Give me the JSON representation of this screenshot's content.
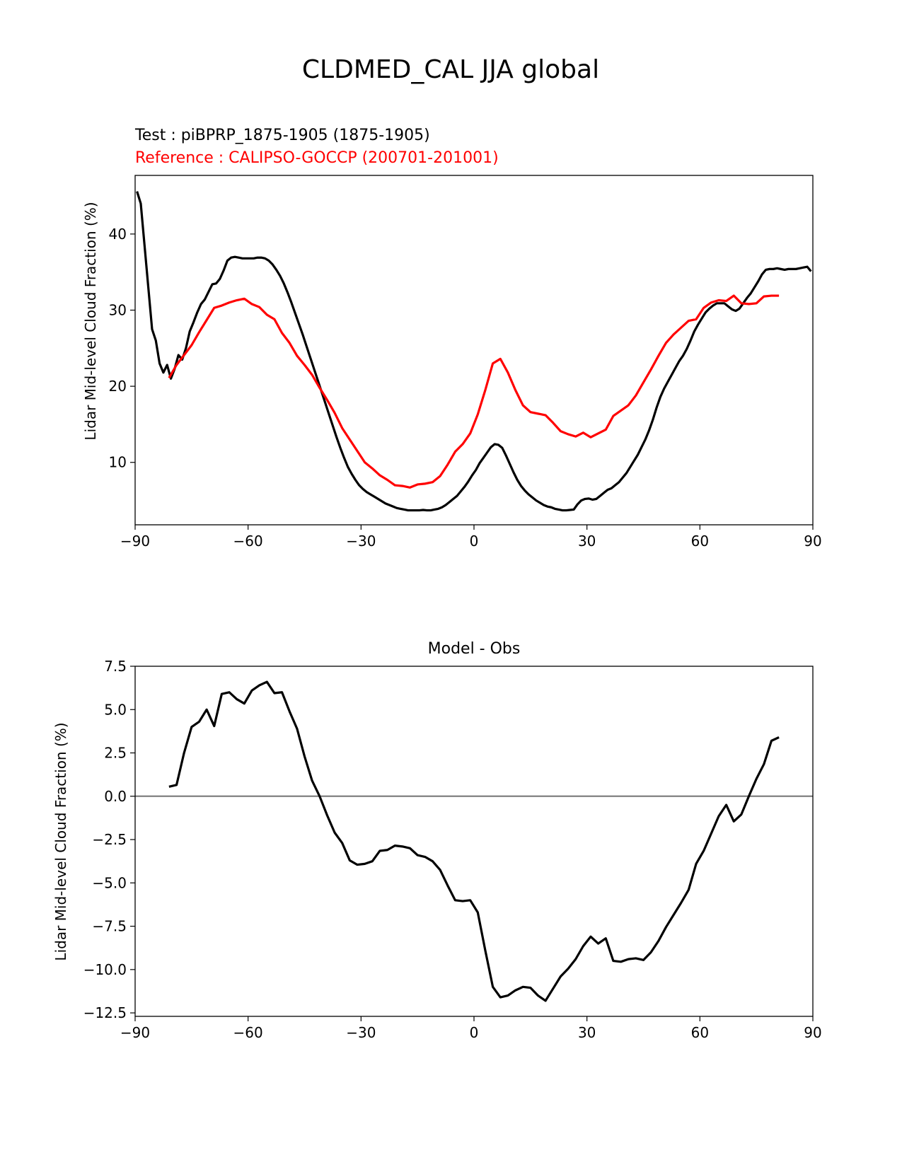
{
  "figure": {
    "title": "CLDMED_CAL JJA global"
  },
  "chart_data": [
    {
      "type": "line",
      "test_label": "Test : piBPRP_1875-1905 (1875-1905)",
      "reference_label": "Reference : CALIPSO-GOCCP (200701-201001)",
      "xlabel": "",
      "ylabel": "Lidar Mid-level Cloud Fraction (%)",
      "xlim": [
        -90,
        90
      ],
      "ylim": [
        1.8,
        47.7
      ],
      "xticks": [
        -90,
        -60,
        -30,
        0,
        30,
        60,
        90
      ],
      "xtick_labels": [
        "−90",
        "−60",
        "−30",
        "0",
        "30",
        "60",
        "90"
      ],
      "yticks": [
        10,
        20,
        30,
        40
      ],
      "ytick_labels": [
        "10",
        "20",
        "30",
        "40"
      ],
      "grid": false,
      "series": [
        {
          "color": "#000000",
          "x": [
            -89.5,
            -88.5,
            -87.5,
            -86.5,
            -85.5,
            -84.5,
            -83.5,
            -82.5,
            -81.5,
            -80.5,
            -79.5,
            -78.5,
            -77.5,
            -76.5,
            -75.5,
            -74.5,
            -73.5,
            -72.5,
            -71.5,
            -70.5,
            -69.5,
            -68.5,
            -67.5,
            -66.5,
            -65.5,
            -64.5,
            -63.5,
            -62.5,
            -61.5,
            -60.5,
            -59.5,
            -58.5,
            -57.5,
            -56.5,
            -55.5,
            -54.5,
            -53.5,
            -52.5,
            -51.5,
            -50.5,
            -49.5,
            -48.5,
            -47.5,
            -46.5,
            -45.5,
            -44.5,
            -43.5,
            -42.5,
            -41.5,
            -40.5,
            -39.5,
            -38.5,
            -37.5,
            -36.5,
            -35.5,
            -34.5,
            -33.5,
            -32.5,
            -31.5,
            -30.5,
            -29.5,
            -28.5,
            -27.5,
            -26.5,
            -25.5,
            -24.5,
            -23.5,
            -22.5,
            -21.5,
            -20.5,
            -19.5,
            -18.5,
            -17.5,
            -16.5,
            -15.5,
            -14.5,
            -13.5,
            -12.5,
            -11.5,
            -10.5,
            -9.5,
            -8.5,
            -7.5,
            -6.5,
            -5.5,
            -4.5,
            -3.5,
            -2.5,
            -1.5,
            -0.5,
            0.5,
            1.5,
            2.5,
            3.5,
            4.5,
            5.5,
            6.5,
            7.5,
            8.5,
            9.5,
            10.5,
            11.5,
            12.5,
            13.5,
            14.5,
            15.5,
            16.5,
            17.5,
            18.5,
            19.5,
            20.5,
            21.5,
            22.5,
            23.5,
            24.5,
            25.5,
            26.5,
            27.5,
            28.5,
            29.5,
            30.5,
            31.5,
            32.5,
            33.5,
            34.5,
            35.5,
            36.5,
            37.5,
            38.5,
            39.5,
            40.5,
            41.5,
            42.5,
            43.5,
            44.5,
            45.5,
            46.5,
            47.5,
            48.5,
            49.5,
            50.5,
            51.5,
            52.5,
            53.5,
            54.5,
            55.5,
            56.5,
            57.5,
            58.5,
            59.5,
            60.5,
            61.5,
            62.5,
            63.5,
            64.5,
            65.5,
            66.5,
            67.5,
            68.5,
            69.5,
            70.5,
            71.5,
            72.5,
            73.5,
            74.5,
            75.5,
            76.5,
            77.5,
            78.5,
            79.5,
            80.5,
            81.5,
            82.5,
            83.5,
            84.5,
            85.5,
            86.5,
            87.5,
            88.5,
            89.5
          ],
          "y": [
            45.6,
            44.0,
            38.5,
            33.0,
            27.5,
            26.0,
            23.0,
            21.8,
            22.8,
            21.0,
            22.3,
            24.1,
            23.5,
            25.0,
            27.2,
            28.4,
            29.7,
            30.8,
            31.4,
            32.4,
            33.4,
            33.5,
            34.1,
            35.2,
            36.5,
            36.9,
            37.0,
            36.9,
            36.8,
            36.8,
            36.8,
            36.8,
            36.9,
            36.9,
            36.8,
            36.5,
            36.0,
            35.3,
            34.5,
            33.5,
            32.3,
            31.0,
            29.6,
            28.2,
            26.8,
            25.3,
            23.8,
            22.3,
            20.8,
            19.3,
            17.8,
            16.3,
            14.8,
            13.3,
            11.9,
            10.6,
            9.4,
            8.5,
            7.7,
            7.0,
            6.5,
            6.1,
            5.8,
            5.5,
            5.2,
            4.9,
            4.6,
            4.4,
            4.2,
            4.0,
            3.9,
            3.8,
            3.7,
            3.7,
            3.7,
            3.7,
            3.75,
            3.7,
            3.7,
            3.8,
            3.9,
            4.1,
            4.4,
            4.8,
            5.2,
            5.6,
            6.2,
            6.8,
            7.5,
            8.3,
            9.0,
            9.9,
            10.6,
            11.3,
            12.0,
            12.4,
            12.3,
            11.9,
            10.9,
            9.8,
            8.7,
            7.7,
            6.9,
            6.3,
            5.8,
            5.4,
            5.0,
            4.7,
            4.4,
            4.2,
            4.1,
            3.9,
            3.8,
            3.7,
            3.7,
            3.75,
            3.8,
            4.5,
            5.0,
            5.2,
            5.25,
            5.1,
            5.2,
            5.6,
            6.0,
            6.4,
            6.6,
            7.0,
            7.4,
            8.0,
            8.6,
            9.4,
            10.2,
            11.0,
            12.0,
            13.0,
            14.2,
            15.6,
            17.2,
            18.6,
            19.7,
            20.6,
            21.5,
            22.4,
            23.3,
            24.0,
            24.9,
            26.0,
            27.2,
            28.1,
            28.9,
            29.7,
            30.2,
            30.6,
            30.9,
            30.9,
            30.9,
            30.5,
            30.1,
            29.9,
            30.2,
            30.9,
            31.6,
            32.2,
            33.0,
            33.8,
            34.7,
            35.3,
            35.4,
            35.4,
            35.5,
            35.4,
            35.3,
            35.4,
            35.4,
            35.4,
            35.5,
            35.6,
            35.7,
            35.1
          ]
        },
        {
          "color": "#ff0000",
          "x": [
            -81,
            -79,
            -77,
            -75,
            -73,
            -71,
            -69,
            -67,
            -65,
            -63,
            -61,
            -59,
            -57,
            -55,
            -53,
            -51,
            -49,
            -47,
            -45,
            -43,
            -41,
            -39,
            -37,
            -35,
            -33,
            -31,
            -29,
            -27,
            -25,
            -23,
            -21,
            -19,
            -17,
            -15,
            -13,
            -11,
            -9,
            -7,
            -5,
            -3,
            -1,
            1,
            3,
            5,
            7,
            9,
            11,
            13,
            15,
            17,
            19,
            21,
            23,
            25,
            27,
            29,
            31,
            33,
            35,
            37,
            39,
            41,
            43,
            45,
            47,
            49,
            51,
            53,
            55,
            57,
            59,
            61,
            63,
            65,
            67,
            69,
            71,
            73,
            75,
            77,
            79,
            81
          ],
          "y": [
            21.1,
            22.8,
            24.1,
            25.4,
            27.1,
            28.7,
            30.3,
            30.6,
            31.0,
            31.3,
            31.5,
            30.8,
            30.4,
            29.4,
            28.8,
            27.0,
            25.7,
            24.0,
            22.8,
            21.5,
            19.8,
            18.2,
            16.5,
            14.5,
            13.0,
            11.5,
            10.0,
            9.2,
            8.3,
            7.7,
            7.0,
            6.9,
            6.7,
            7.1,
            7.2,
            7.4,
            8.2,
            9.7,
            11.4,
            12.4,
            13.8,
            16.3,
            19.5,
            23.0,
            23.6,
            21.8,
            19.5,
            17.5,
            16.6,
            16.4,
            16.2,
            15.2,
            14.1,
            13.7,
            13.4,
            13.9,
            13.3,
            13.8,
            14.3,
            16.1,
            16.8,
            17.5,
            18.8,
            20.5,
            22.2,
            24.0,
            25.7,
            26.8,
            27.7,
            28.6,
            28.8,
            30.3,
            31.0,
            31.3,
            31.2,
            31.9,
            30.9,
            30.8,
            30.9,
            31.8,
            31.9,
            31.9
          ]
        }
      ]
    },
    {
      "type": "line",
      "title": "Model - Obs",
      "xlabel": "",
      "ylabel": "Lidar Mid-level Cloud Fraction (%)",
      "xlim": [
        -90,
        90
      ],
      "ylim": [
        -12.7,
        7.5
      ],
      "xticks": [
        -90,
        -60,
        -30,
        0,
        30,
        60,
        90
      ],
      "xtick_labels": [
        "−90",
        "−60",
        "−30",
        "0",
        "30",
        "60",
        "90"
      ],
      "yticks": [
        7.5,
        5.0,
        2.5,
        0.0,
        -2.5,
        -5.0,
        -7.5,
        -10.0,
        -12.5
      ],
      "ytick_labels": [
        "7.5",
        "5.0",
        "2.5",
        "0.0",
        "−2.5",
        "−5.0",
        "−7.5",
        "−10.0",
        "−12.5"
      ],
      "grid": false,
      "zero_line_color": "#808080",
      "series": [
        {
          "color": "#000000",
          "x": [
            -81,
            -79,
            -77,
            -75,
            -73,
            -71,
            -69,
            -67,
            -65,
            -63,
            -61,
            -59,
            -57,
            -55,
            -53,
            -51,
            -49,
            -47,
            -45,
            -43,
            -41,
            -39,
            -37,
            -35,
            -33,
            -31,
            -29,
            -27,
            -25,
            -23,
            -21,
            -19,
            -17,
            -15,
            -13,
            -11,
            -9,
            -7,
            -5,
            -3,
            -1,
            1,
            3,
            5,
            7,
            9,
            11,
            13,
            15,
            17,
            19,
            21,
            23,
            25,
            27,
            29,
            31,
            33,
            35,
            37,
            39,
            41,
            43,
            45,
            47,
            49,
            51,
            53,
            55,
            57,
            59,
            61,
            63,
            65,
            67,
            69,
            71,
            73,
            75,
            77,
            79,
            81
          ],
          "y": [
            0.55,
            0.65,
            2.5,
            4.0,
            4.3,
            5.0,
            4.05,
            5.9,
            6.0,
            5.6,
            5.35,
            6.1,
            6.4,
            6.6,
            5.95,
            6.0,
            4.9,
            3.9,
            2.3,
            0.9,
            0.0,
            -1.1,
            -2.1,
            -2.7,
            -3.7,
            -3.95,
            -3.9,
            -3.75,
            -3.15,
            -3.1,
            -2.85,
            -2.9,
            -3.0,
            -3.4,
            -3.5,
            -3.75,
            -4.25,
            -5.15,
            -6.0,
            -6.05,
            -6.0,
            -6.7,
            -8.9,
            -11.0,
            -11.6,
            -11.5,
            -11.2,
            -11.0,
            -11.05,
            -11.5,
            -11.8,
            -11.1,
            -10.4,
            -9.95,
            -9.4,
            -8.65,
            -8.1,
            -8.5,
            -8.2,
            -9.5,
            -9.55,
            -9.4,
            -9.35,
            -9.45,
            -9.0,
            -8.35,
            -7.55,
            -6.85,
            -6.15,
            -5.4,
            -3.9,
            -3.15,
            -2.15,
            -1.15,
            -0.5,
            -1.45,
            -1.05,
            0.0,
            1.0,
            1.85,
            3.2,
            3.4
          ]
        }
      ]
    }
  ]
}
